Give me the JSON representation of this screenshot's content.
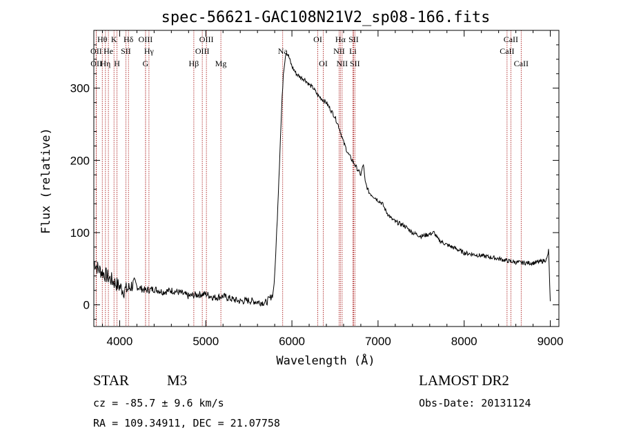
{
  "chart_data": {
    "type": "line",
    "title": "spec-56621-GAC108N21V2_sp08-166.fits",
    "xlabel": "Wavelength (Å)",
    "ylabel": "Flux (relative)",
    "xlim": [
      3700,
      9100
    ],
    "ylim": [
      -30,
      380
    ],
    "xticks": [
      4000,
      5000,
      6000,
      7000,
      8000,
      9000
    ],
    "yticks": [
      0,
      100,
      200,
      300
    ],
    "grid": false,
    "series": [
      {
        "x": [
          3700,
          3750,
          3800,
          3850,
          3900,
          3950,
          4000,
          4050,
          4100,
          4150,
          4200,
          4300,
          4400,
          4500,
          4600,
          4700,
          4800,
          4900,
          5000,
          5100,
          5200,
          5300,
          5400,
          5500,
          5600,
          5700,
          5750,
          5780,
          5800,
          5830,
          5860,
          5880,
          5900,
          5930,
          5960,
          6000,
          6050,
          6100,
          6150,
          6200,
          6250,
          6300,
          6350,
          6400,
          6450,
          6500,
          6550,
          6600,
          6650,
          6700,
          6750,
          6800,
          6830,
          6850,
          6880,
          6900,
          6950,
          7000,
          7050,
          7100,
          7150,
          7200,
          7300,
          7400,
          7500,
          7600,
          7650,
          7700,
          7800,
          7900,
          8000,
          8100,
          8200,
          8300,
          8400,
          8500,
          8600,
          8700,
          8800,
          8900,
          8960,
          8980,
          9000
        ],
        "y": [
          60,
          50,
          45,
          40,
          35,
          30,
          25,
          20,
          22,
          28,
          25,
          20,
          22,
          18,
          20,
          17,
          12,
          14,
          15,
          10,
          12,
          8,
          5,
          6,
          4,
          3,
          10,
          15,
          40,
          120,
          210,
          270,
          320,
          350,
          345,
          330,
          320,
          315,
          312,
          305,
          300,
          290,
          285,
          280,
          270,
          260,
          245,
          225,
          210,
          200,
          190,
          180,
          195,
          170,
          160,
          155,
          150,
          145,
          140,
          128,
          120,
          115,
          110,
          100,
          95,
          98,
          100,
          90,
          83,
          78,
          72,
          70,
          68,
          66,
          64,
          61,
          59,
          58,
          58,
          60,
          63,
          75,
          5
        ]
      }
    ],
    "emission_lines": [
      {
        "label": "OII",
        "x": 3727,
        "row": 2
      },
      {
        "label": "OII",
        "x": 3729,
        "row": 3
      },
      {
        "label": "Hθ",
        "x": 3798,
        "row": 1
      },
      {
        "label": "Hη",
        "x": 3835,
        "row": 3
      },
      {
        "label": "He",
        "x": 3869,
        "row": 2
      },
      {
        "label": "K",
        "x": 3934,
        "row": 1
      },
      {
        "label": "H",
        "x": 3969,
        "row": 3
      },
      {
        "label": "SII",
        "x": 4072,
        "row": 2
      },
      {
        "label": "Hδ",
        "x": 4102,
        "row": 1
      },
      {
        "label": "OIII",
        "x": 4300,
        "row": 1
      },
      {
        "label": "Hγ",
        "x": 4340,
        "row": 2
      },
      {
        "label": "G",
        "x": 4300,
        "row": 3
      },
      {
        "label": "Hβ",
        "x": 4861,
        "row": 3
      },
      {
        "label": "OIII",
        "x": 4959,
        "row": 2
      },
      {
        "label": "OIII",
        "x": 5007,
        "row": 1
      },
      {
        "label": "Mg",
        "x": 5175,
        "row": 3
      },
      {
        "label": "Na",
        "x": 5893,
        "row": 2
      },
      {
        "label": "OI",
        "x": 6300,
        "row": 1
      },
      {
        "label": "OI",
        "x": 6364,
        "row": 3
      },
      {
        "label": "Hα",
        "x": 6563,
        "row": 1
      },
      {
        "label": "NII",
        "x": 6548,
        "row": 2
      },
      {
        "label": "NII",
        "x": 6583,
        "row": 3
      },
      {
        "label": "SII",
        "x": 6716,
        "row": 1
      },
      {
        "label": "Li",
        "x": 6708,
        "row": 2
      },
      {
        "label": "SII",
        "x": 6731,
        "row": 3
      },
      {
        "label": "CaII",
        "x": 8542,
        "row": 1
      },
      {
        "label": "CaII",
        "x": 8498,
        "row": 2
      },
      {
        "label": "CaII",
        "x": 8662,
        "row": 3
      }
    ]
  },
  "info": {
    "object_type": "STAR",
    "subclass": "M3",
    "survey": "LAMOST DR2",
    "cz": "cz = -85.7 ± 9.6 km/s",
    "obs_date": "Obs-Date: 20131124",
    "coords": "RA = 109.34911, DEC =  21.07758"
  }
}
